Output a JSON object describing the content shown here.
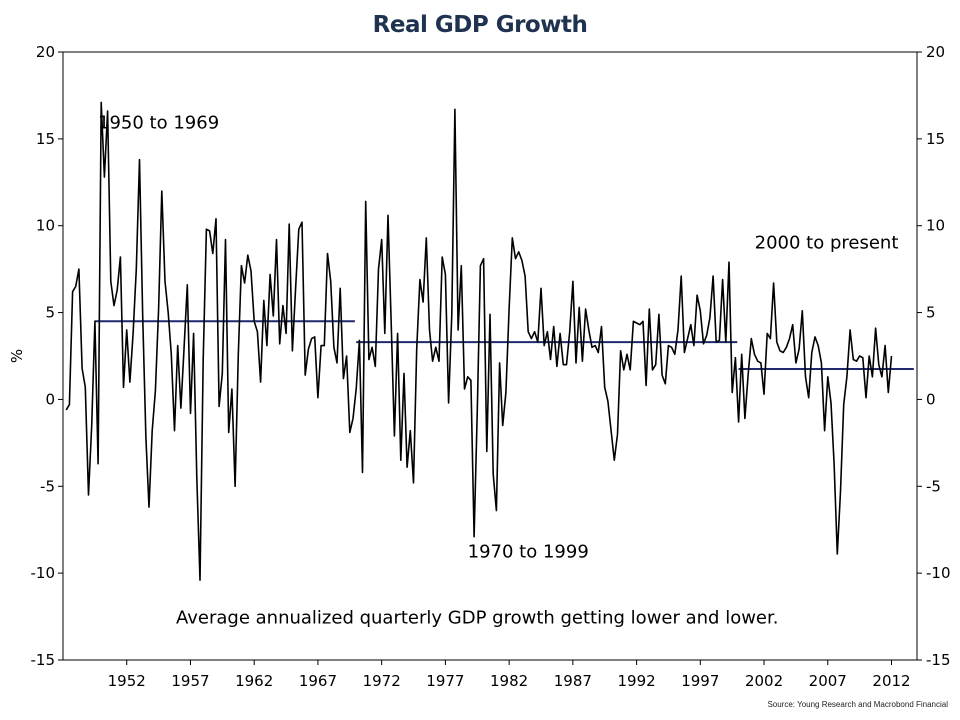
{
  "chart_data": {
    "type": "line",
    "title": "Real GDP Growth",
    "ylabel": "%",
    "xlabel": "",
    "ylim": [
      -15,
      20
    ],
    "xlim": [
      1947,
      2014
    ],
    "y_ticks": [
      "-15",
      "-10",
      "-5",
      "0",
      "5",
      "10",
      "15",
      "20"
    ],
    "x_ticks": [
      "1952",
      "1957",
      "1962",
      "1967",
      "1972",
      "1977",
      "1982",
      "1987",
      "1992",
      "1997",
      "2002",
      "2007",
      "2012"
    ],
    "grid": false,
    "legend": "none",
    "colors": {
      "series": "#000000",
      "average": "#1f2a6e",
      "title": "#1f3350"
    },
    "series": [
      {
        "x_start": 1947.25,
        "step": 0.25,
        "values": [
          -0.6,
          -0.3,
          6.2,
          6.5,
          7.5,
          1.8,
          0.7,
          -5.5,
          -1.5,
          4.5,
          -3.7,
          17.1,
          12.8,
          16.6,
          6.8,
          5.4,
          6.3,
          8.2,
          0.7,
          4.0,
          1.0,
          3.8,
          7.5,
          13.8,
          4.8,
          -2.2,
          -6.2,
          -1.8,
          0.5,
          5.2,
          12.0,
          6.8,
          5.0,
          2.6,
          -1.8,
          3.1,
          -0.5,
          3.0,
          6.6,
          -0.8,
          3.8,
          -4.5,
          -10.4,
          2.3,
          9.8,
          9.7,
          8.4,
          10.4,
          -0.4,
          1.5,
          9.2,
          -1.9,
          0.6,
          -5.0,
          2.6,
          7.7,
          6.7,
          8.3,
          7.4,
          4.5,
          3.9,
          1.0,
          5.7,
          3.1,
          7.2,
          4.8,
          9.2,
          3.2,
          5.4,
          3.8,
          10.1,
          2.8,
          6.4,
          9.8,
          10.2,
          1.4,
          2.9,
          3.5,
          3.6,
          0.1,
          3.1,
          3.1,
          8.4,
          6.8,
          3.0,
          2.1,
          6.4,
          1.2,
          2.5,
          -1.9,
          -1.1,
          0.6,
          3.4,
          -4.2,
          11.4,
          2.3,
          3.0,
          1.9,
          7.5,
          9.2,
          3.8,
          10.6,
          4.4,
          -2.1,
          3.8,
          -3.5,
          1.5,
          -3.9,
          -1.8,
          -4.8,
          2.9,
          6.9,
          5.6,
          9.3,
          4.0,
          2.2,
          3.0,
          2.2,
          8.2,
          7.2,
          -0.2,
          4.9,
          16.7,
          4.0,
          7.7,
          0.6,
          1.3,
          1.1,
          -7.9,
          -0.6,
          7.7,
          8.1,
          -3.0,
          4.9,
          -4.3,
          -6.4,
          2.1,
          -1.5,
          0.4,
          5.2,
          9.3,
          8.1,
          8.5,
          8.0,
          7.1,
          3.9,
          3.5,
          3.9,
          3.3,
          6.4,
          3.1,
          3.9,
          2.3,
          4.2,
          1.9,
          3.8,
          2.0,
          2.0,
          3.9,
          6.8,
          2.1,
          5.3,
          2.2,
          5.2,
          4.0,
          3.0,
          3.1,
          2.7,
          4.2,
          0.7,
          -0.1,
          -1.8,
          -3.5,
          -2.0,
          2.8,
          1.7,
          2.6,
          1.7,
          4.5,
          4.4,
          4.3,
          4.5,
          0.8,
          5.2,
          1.7,
          2.0,
          4.9,
          1.4,
          0.9,
          3.1,
          3.0,
          2.6,
          4.0,
          7.1,
          2.7,
          3.5,
          4.3,
          3.1,
          6.0,
          5.1,
          3.2,
          3.7,
          4.7,
          7.1,
          3.3,
          3.4,
          6.9,
          3.3,
          7.9,
          0.4,
          2.4,
          -1.3,
          2.6,
          -1.1,
          1.4,
          3.5,
          2.6,
          2.2,
          2.1,
          0.3,
          3.8,
          3.5,
          6.7,
          3.3,
          2.8,
          2.7,
          3.0,
          3.5,
          4.3,
          2.1,
          2.9,
          5.1,
          1.3,
          0.1,
          2.7,
          3.6,
          3.1,
          2.1,
          -1.8,
          1.3,
          -0.2,
          -3.7,
          -8.9,
          -5.3,
          -0.3,
          1.3,
          4.0,
          2.3,
          2.2,
          2.5,
          2.4,
          0.1,
          2.5,
          1.3,
          4.1,
          2.0,
          1.3,
          3.1,
          0.4,
          2.5
        ]
      }
    ],
    "averages": [
      {
        "x_start": 1949.5,
        "x_end": 1969.9,
        "value": 4.5
      },
      {
        "x_start": 1970.0,
        "x_end": 1999.9,
        "value": 3.3
      },
      {
        "x_start": 2000.0,
        "x_end": 2013.75,
        "value": 1.75
      }
    ],
    "annotations": [
      {
        "text": "1950 to 1969",
        "x": 1954.5,
        "y": 15.6
      },
      {
        "text": "1970 to 1999",
        "x": 1983.5,
        "y": -9.1
      },
      {
        "text": "2000 to present",
        "x": 2006.9,
        "y": 8.7
      },
      {
        "text": "Average annualized quarterly GDP growth getting lower and lower.",
        "x": 1979.5,
        "y": -12.9
      }
    ],
    "source": "Source: Young Research and Macrobond Financial"
  }
}
